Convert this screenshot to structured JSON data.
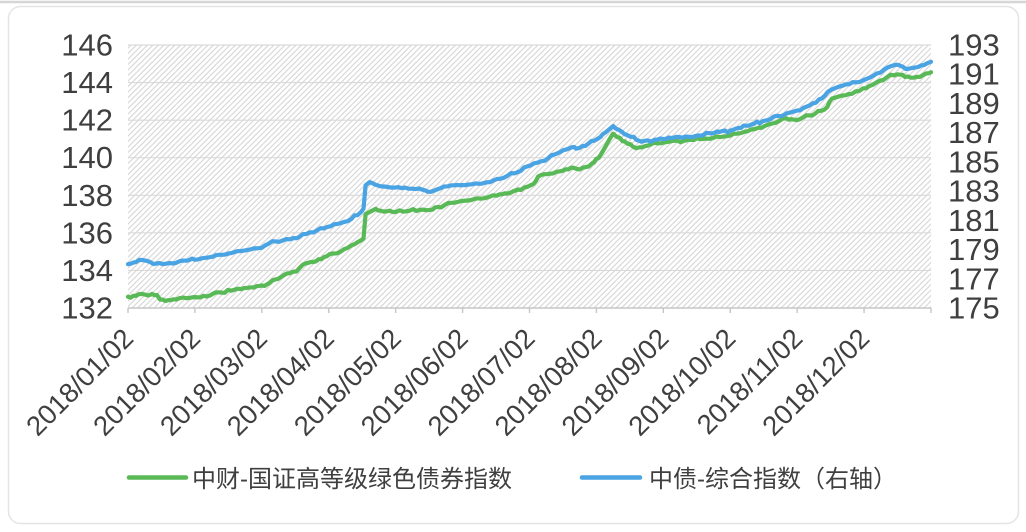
{
  "chart_data": {
    "type": "line",
    "title": "",
    "x_axis": {
      "tick_labels": [
        "2018/01/02",
        "2018/02/02",
        "2018/03/02",
        "2018/04/02",
        "2018/05/02",
        "2018/06/02",
        "2018/07/02",
        "2018/08/02",
        "2018/09/02",
        "2018/10/02",
        "2018/11/02",
        "2018/12/02"
      ],
      "domain_months": [
        0,
        12.01
      ],
      "note": "x encoded as months since 2018/01/02"
    },
    "y_axis_left": {
      "min": 132,
      "max": 146,
      "step": 2,
      "ticks": [
        146,
        144,
        142,
        140,
        138,
        136,
        134,
        132
      ]
    },
    "y_axis_right": {
      "min": 175,
      "max": 193,
      "step": 2,
      "ticks": [
        193,
        191,
        189,
        187,
        185,
        183,
        181,
        179,
        177,
        175
      ]
    },
    "grid": "horizontal",
    "plot_background": "diagonal-hatch",
    "legend_position": "bottom",
    "series": [
      {
        "name": "中财-国证高等级绿色债券指数",
        "axis": "left",
        "color": "#5ab957",
        "points": [
          [
            0.0,
            132.6
          ],
          [
            0.12,
            132.65
          ],
          [
            0.25,
            132.72
          ],
          [
            0.36,
            132.75
          ],
          [
            0.43,
            132.7
          ],
          [
            0.48,
            132.45
          ],
          [
            0.6,
            132.42
          ],
          [
            0.72,
            132.45
          ],
          [
            0.87,
            132.52
          ],
          [
            1.0,
            132.58
          ],
          [
            1.13,
            132.65
          ],
          [
            1.27,
            132.76
          ],
          [
            1.4,
            132.82
          ],
          [
            1.54,
            132.92
          ],
          [
            1.69,
            133.0
          ],
          [
            1.84,
            133.1
          ],
          [
            2.0,
            133.2
          ],
          [
            2.12,
            133.35
          ],
          [
            2.24,
            133.55
          ],
          [
            2.33,
            133.75
          ],
          [
            2.42,
            133.85
          ],
          [
            2.52,
            133.95
          ],
          [
            2.61,
            134.3
          ],
          [
            2.73,
            134.45
          ],
          [
            2.85,
            134.6
          ],
          [
            2.97,
            134.75
          ],
          [
            3.07,
            134.9
          ],
          [
            3.18,
            135.0
          ],
          [
            3.28,
            135.2
          ],
          [
            3.39,
            135.4
          ],
          [
            3.48,
            135.6
          ],
          [
            3.52,
            135.7
          ],
          [
            3.55,
            137.0
          ],
          [
            3.63,
            137.15
          ],
          [
            3.7,
            137.28
          ],
          [
            3.78,
            137.18
          ],
          [
            3.91,
            137.18
          ],
          [
            4.06,
            137.2
          ],
          [
            4.21,
            137.18
          ],
          [
            4.36,
            137.22
          ],
          [
            4.51,
            137.22
          ],
          [
            4.63,
            137.38
          ],
          [
            4.73,
            137.48
          ],
          [
            4.84,
            137.6
          ],
          [
            4.93,
            137.65
          ],
          [
            5.0,
            137.7
          ],
          [
            5.13,
            137.75
          ],
          [
            5.27,
            137.82
          ],
          [
            5.4,
            137.92
          ],
          [
            5.51,
            137.98
          ],
          [
            5.63,
            138.1
          ],
          [
            5.75,
            138.2
          ],
          [
            5.87,
            138.28
          ],
          [
            5.97,
            138.45
          ],
          [
            6.06,
            138.6
          ],
          [
            6.13,
            139.0
          ],
          [
            6.22,
            139.12
          ],
          [
            6.31,
            139.15
          ],
          [
            6.4,
            139.25
          ],
          [
            6.49,
            139.3
          ],
          [
            6.58,
            139.38
          ],
          [
            6.67,
            139.45
          ],
          [
            6.75,
            139.38
          ],
          [
            6.84,
            139.5
          ],
          [
            6.93,
            139.68
          ],
          [
            7.0,
            139.95
          ],
          [
            7.07,
            140.2
          ],
          [
            7.13,
            140.55
          ],
          [
            7.19,
            140.95
          ],
          [
            7.25,
            141.28
          ],
          [
            7.31,
            141.1
          ],
          [
            7.39,
            140.88
          ],
          [
            7.46,
            140.75
          ],
          [
            7.55,
            140.58
          ],
          [
            7.64,
            140.55
          ],
          [
            7.73,
            140.62
          ],
          [
            7.82,
            140.72
          ],
          [
            7.91,
            140.76
          ],
          [
            8.0,
            140.8
          ],
          [
            8.1,
            140.86
          ],
          [
            8.21,
            140.9
          ],
          [
            8.31,
            140.9
          ],
          [
            8.42,
            140.95
          ],
          [
            8.54,
            141.0
          ],
          [
            8.64,
            141.02
          ],
          [
            8.75,
            141.06
          ],
          [
            8.85,
            141.1
          ],
          [
            8.96,
            141.15
          ],
          [
            9.0,
            141.18
          ],
          [
            9.1,
            141.28
          ],
          [
            9.21,
            141.38
          ],
          [
            9.31,
            141.5
          ],
          [
            9.42,
            141.6
          ],
          [
            9.52,
            141.7
          ],
          [
            9.63,
            141.82
          ],
          [
            9.73,
            141.95
          ],
          [
            9.84,
            142.1
          ],
          [
            9.91,
            142.05
          ],
          [
            10.0,
            142.0
          ],
          [
            10.09,
            142.15
          ],
          [
            10.18,
            142.25
          ],
          [
            10.27,
            142.35
          ],
          [
            10.36,
            142.5
          ],
          [
            10.45,
            142.7
          ],
          [
            10.52,
            143.15
          ],
          [
            10.61,
            143.25
          ],
          [
            10.72,
            143.32
          ],
          [
            10.82,
            143.4
          ],
          [
            10.93,
            143.55
          ],
          [
            11.03,
            143.7
          ],
          [
            11.13,
            143.88
          ],
          [
            11.24,
            144.1
          ],
          [
            11.34,
            144.28
          ],
          [
            11.45,
            144.38
          ],
          [
            11.54,
            144.42
          ],
          [
            11.61,
            144.3
          ],
          [
            11.7,
            144.26
          ],
          [
            11.79,
            144.3
          ],
          [
            11.88,
            144.4
          ],
          [
            11.97,
            144.5
          ],
          [
            12.01,
            144.55
          ]
        ]
      },
      {
        "name": "中债-综合指数（右轴）",
        "axis": "right",
        "color": "#4aa3e3",
        "points": [
          [
            0.0,
            178.0
          ],
          [
            0.12,
            178.15
          ],
          [
            0.22,
            178.28
          ],
          [
            0.33,
            178.15
          ],
          [
            0.43,
            178.05
          ],
          [
            0.52,
            178.0
          ],
          [
            0.63,
            178.08
          ],
          [
            0.75,
            178.16
          ],
          [
            0.87,
            178.24
          ],
          [
            1.0,
            178.3
          ],
          [
            1.13,
            178.42
          ],
          [
            1.27,
            178.52
          ],
          [
            1.4,
            178.64
          ],
          [
            1.54,
            178.76
          ],
          [
            1.69,
            178.9
          ],
          [
            1.84,
            179.02
          ],
          [
            2.0,
            179.12
          ],
          [
            2.1,
            179.4
          ],
          [
            2.21,
            179.55
          ],
          [
            2.31,
            179.62
          ],
          [
            2.42,
            179.7
          ],
          [
            2.52,
            179.78
          ],
          [
            2.61,
            180.05
          ],
          [
            2.72,
            180.18
          ],
          [
            2.82,
            180.3
          ],
          [
            2.93,
            180.45
          ],
          [
            3.03,
            180.6
          ],
          [
            3.13,
            180.75
          ],
          [
            3.24,
            180.9
          ],
          [
            3.34,
            181.1
          ],
          [
            3.43,
            181.35
          ],
          [
            3.49,
            181.6
          ],
          [
            3.52,
            181.8
          ],
          [
            3.55,
            183.4
          ],
          [
            3.61,
            183.62
          ],
          [
            3.69,
            183.45
          ],
          [
            3.78,
            183.32
          ],
          [
            3.88,
            183.28
          ],
          [
            3.99,
            183.25
          ],
          [
            4.09,
            183.2
          ],
          [
            4.19,
            183.17
          ],
          [
            4.3,
            183.14
          ],
          [
            4.4,
            183.1
          ],
          [
            4.48,
            182.95
          ],
          [
            4.57,
            183.02
          ],
          [
            4.67,
            183.2
          ],
          [
            4.78,
            183.33
          ],
          [
            4.88,
            183.4
          ],
          [
            5.0,
            183.42
          ],
          [
            5.12,
            183.46
          ],
          [
            5.24,
            183.5
          ],
          [
            5.36,
            183.6
          ],
          [
            5.46,
            183.72
          ],
          [
            5.57,
            183.85
          ],
          [
            5.67,
            184.05
          ],
          [
            5.78,
            184.22
          ],
          [
            5.87,
            184.38
          ],
          [
            5.97,
            184.7
          ],
          [
            6.07,
            184.9
          ],
          [
            6.18,
            185.05
          ],
          [
            6.28,
            185.25
          ],
          [
            6.37,
            185.5
          ],
          [
            6.46,
            185.68
          ],
          [
            6.55,
            185.85
          ],
          [
            6.63,
            186.0
          ],
          [
            6.7,
            185.9
          ],
          [
            6.79,
            186.08
          ],
          [
            6.88,
            186.25
          ],
          [
            6.97,
            186.45
          ],
          [
            7.06,
            186.7
          ],
          [
            7.13,
            187.0
          ],
          [
            7.21,
            187.3
          ],
          [
            7.25,
            187.45
          ],
          [
            7.33,
            187.2
          ],
          [
            7.42,
            186.9
          ],
          [
            7.51,
            186.72
          ],
          [
            7.6,
            186.5
          ],
          [
            7.67,
            186.38
          ],
          [
            7.76,
            186.48
          ],
          [
            7.87,
            186.52
          ],
          [
            8.0,
            186.56
          ],
          [
            8.12,
            186.64
          ],
          [
            8.24,
            186.7
          ],
          [
            8.36,
            186.73
          ],
          [
            8.48,
            186.78
          ],
          [
            8.6,
            186.85
          ],
          [
            8.72,
            186.95
          ],
          [
            8.84,
            187.05
          ],
          [
            9.0,
            187.15
          ],
          [
            9.12,
            187.32
          ],
          [
            9.24,
            187.48
          ],
          [
            9.36,
            187.62
          ],
          [
            9.48,
            187.78
          ],
          [
            9.6,
            187.92
          ],
          [
            9.72,
            188.15
          ],
          [
            9.84,
            188.32
          ],
          [
            9.93,
            188.42
          ],
          [
            10.0,
            188.52
          ],
          [
            10.09,
            188.68
          ],
          [
            10.18,
            188.85
          ],
          [
            10.28,
            189.05
          ],
          [
            10.37,
            189.35
          ],
          [
            10.46,
            189.8
          ],
          [
            10.57,
            190.05
          ],
          [
            10.67,
            190.2
          ],
          [
            10.78,
            190.32
          ],
          [
            10.88,
            190.45
          ],
          [
            10.99,
            190.6
          ],
          [
            11.09,
            190.78
          ],
          [
            11.19,
            191.05
          ],
          [
            11.3,
            191.32
          ],
          [
            11.4,
            191.55
          ],
          [
            11.49,
            191.65
          ],
          [
            11.58,
            191.5
          ],
          [
            11.67,
            191.38
          ],
          [
            11.76,
            191.45
          ],
          [
            11.85,
            191.6
          ],
          [
            11.94,
            191.75
          ],
          [
            12.01,
            191.85
          ]
        ]
      }
    ]
  }
}
